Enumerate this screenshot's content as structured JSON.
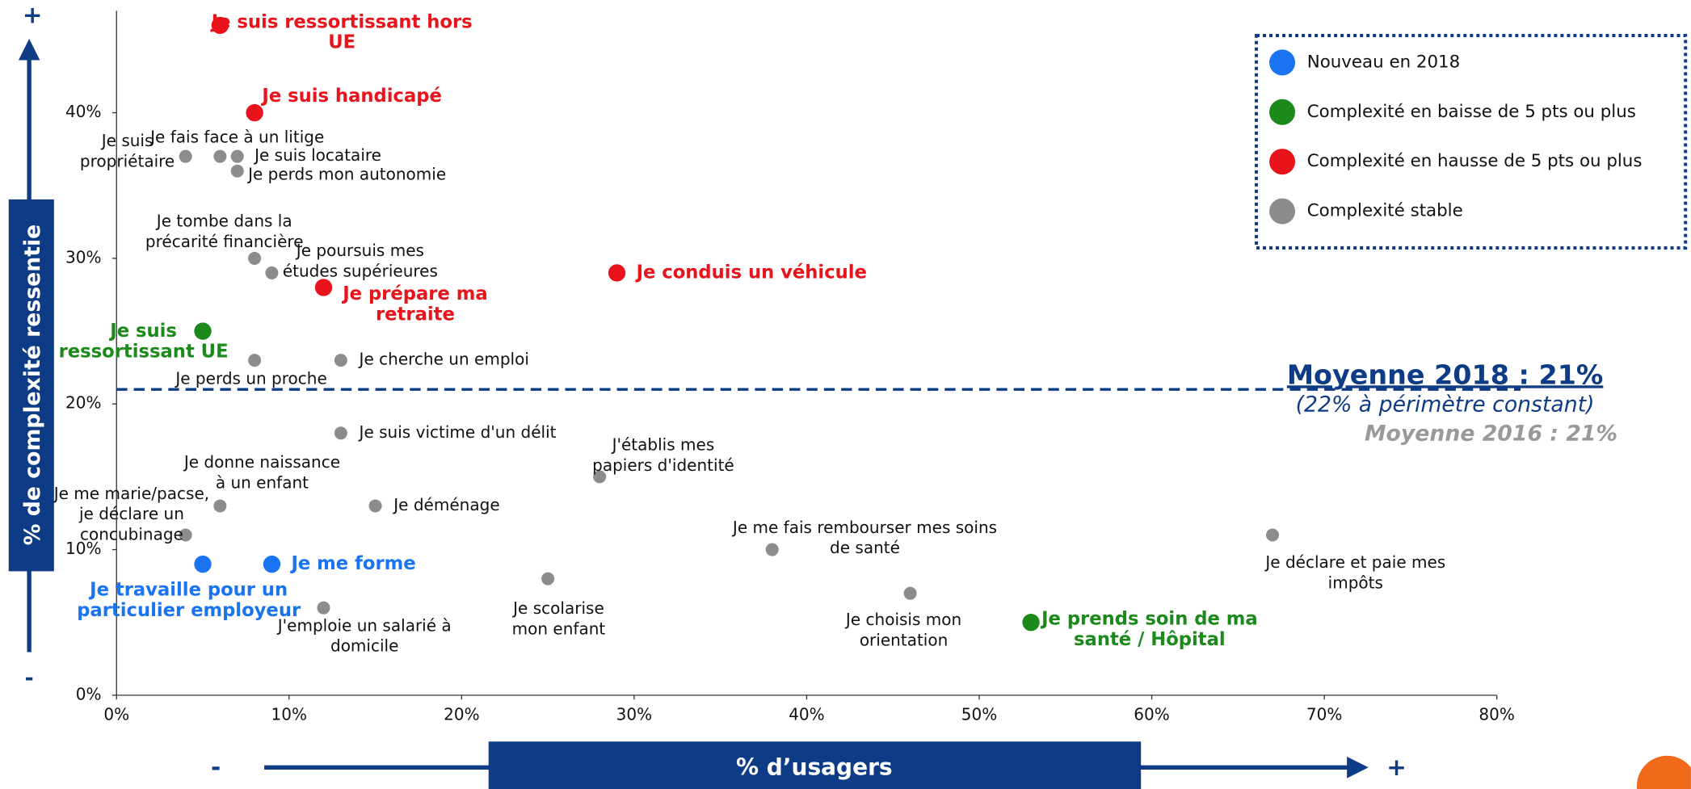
{
  "chart_data": {
    "type": "scatter",
    "xlabel": "% d’usagers",
    "ylabel": "% de complexité ressentie",
    "x_axis_ends": {
      "low": "-",
      "high": "+"
    },
    "y_axis_ends": {
      "low": "-",
      "high": "+"
    },
    "xlim": [
      0,
      80
    ],
    "ylim": [
      0,
      47
    ],
    "xticks": [
      {
        "value": 0,
        "label": "0%"
      },
      {
        "value": 10,
        "label": "10%"
      },
      {
        "value": 20,
        "label": "20%"
      },
      {
        "value": 30,
        "label": "30%"
      },
      {
        "value": 40,
        "label": "40%"
      },
      {
        "value": 50,
        "label": "50%"
      },
      {
        "value": 60,
        "label": "60%"
      },
      {
        "value": 70,
        "label": "70%"
      },
      {
        "value": 80,
        "label": "80%"
      }
    ],
    "yticks": [
      {
        "value": 0,
        "label": "0%"
      },
      {
        "value": 10,
        "label": "10%"
      },
      {
        "value": 20,
        "label": "20%"
      },
      {
        "value": 30,
        "label": "30%"
      },
      {
        "value": 40,
        "label": "40%"
      }
    ],
    "reference_line": {
      "value": 21,
      "label": "Moyenne 2018 : 21%",
      "sublabel": "(22% à périmètre constant)",
      "note": "Moyenne 2016 : 21%"
    },
    "series": [
      {
        "name": "Nouveau en 2018",
        "color": "#1a73f0",
        "x": [
          5,
          9
        ],
        "values": [
          9,
          9
        ],
        "labels": [
          "Je travaille pour un\nparticulier employeur",
          "Je me forme"
        ]
      },
      {
        "name": "Complexité en baisse de 5 pts ou plus",
        "color": "#1b8a1b",
        "x": [
          5,
          53
        ],
        "values": [
          25,
          5
        ],
        "labels": [
          "Je suis\nressortissant UE",
          "Je prends soin de ma\nsanté / Hôpital"
        ]
      },
      {
        "name": "Complexité en hausse de 5 pts ou plus",
        "color": "#e8131b",
        "x": [
          6,
          8,
          12,
          29
        ],
        "values": [
          46,
          40,
          28,
          29
        ],
        "labels": [
          "Je suis ressortissant hors\nUE",
          "Je suis handicapé",
          "Je prépare ma\nretraite",
          "Je conduis un véhicule"
        ]
      },
      {
        "name": "Complexité stable",
        "color": "#8c8c8c",
        "x": [
          4,
          6,
          7,
          7,
          8,
          9,
          8,
          13,
          13,
          28,
          6,
          15,
          4,
          12,
          25,
          38,
          46,
          67
        ],
        "values": [
          37,
          37,
          37,
          36,
          30,
          29,
          23,
          23,
          18,
          15,
          13,
          13,
          11,
          6,
          8,
          10,
          7,
          11
        ],
        "labels": [
          "Je suis\npropriétaire",
          "Je fais face à un litige",
          "Je suis locataire",
          "Je perds mon autonomie",
          "Je tombe dans la\nprécarité financière",
          "Je poursuis mes\nétudes supérieures",
          "Je perds un proche",
          "Je cherche un emploi",
          "Je suis victime d'un délit",
          "J'établis mes\npapiers d'identité",
          "Je donne naissance\nà un enfant",
          "Je déménage",
          "Je me marie/pacse,\nje déclare un\nconcubinage",
          "J'emploie un salarié à\ndomicile",
          "Je scolarise\nmon enfant",
          "Je me fais rembourser mes soins\nde santé",
          "Je choisis mon\norientation",
          "Je déclare et paie mes\nimpôts"
        ]
      }
    ]
  }
}
